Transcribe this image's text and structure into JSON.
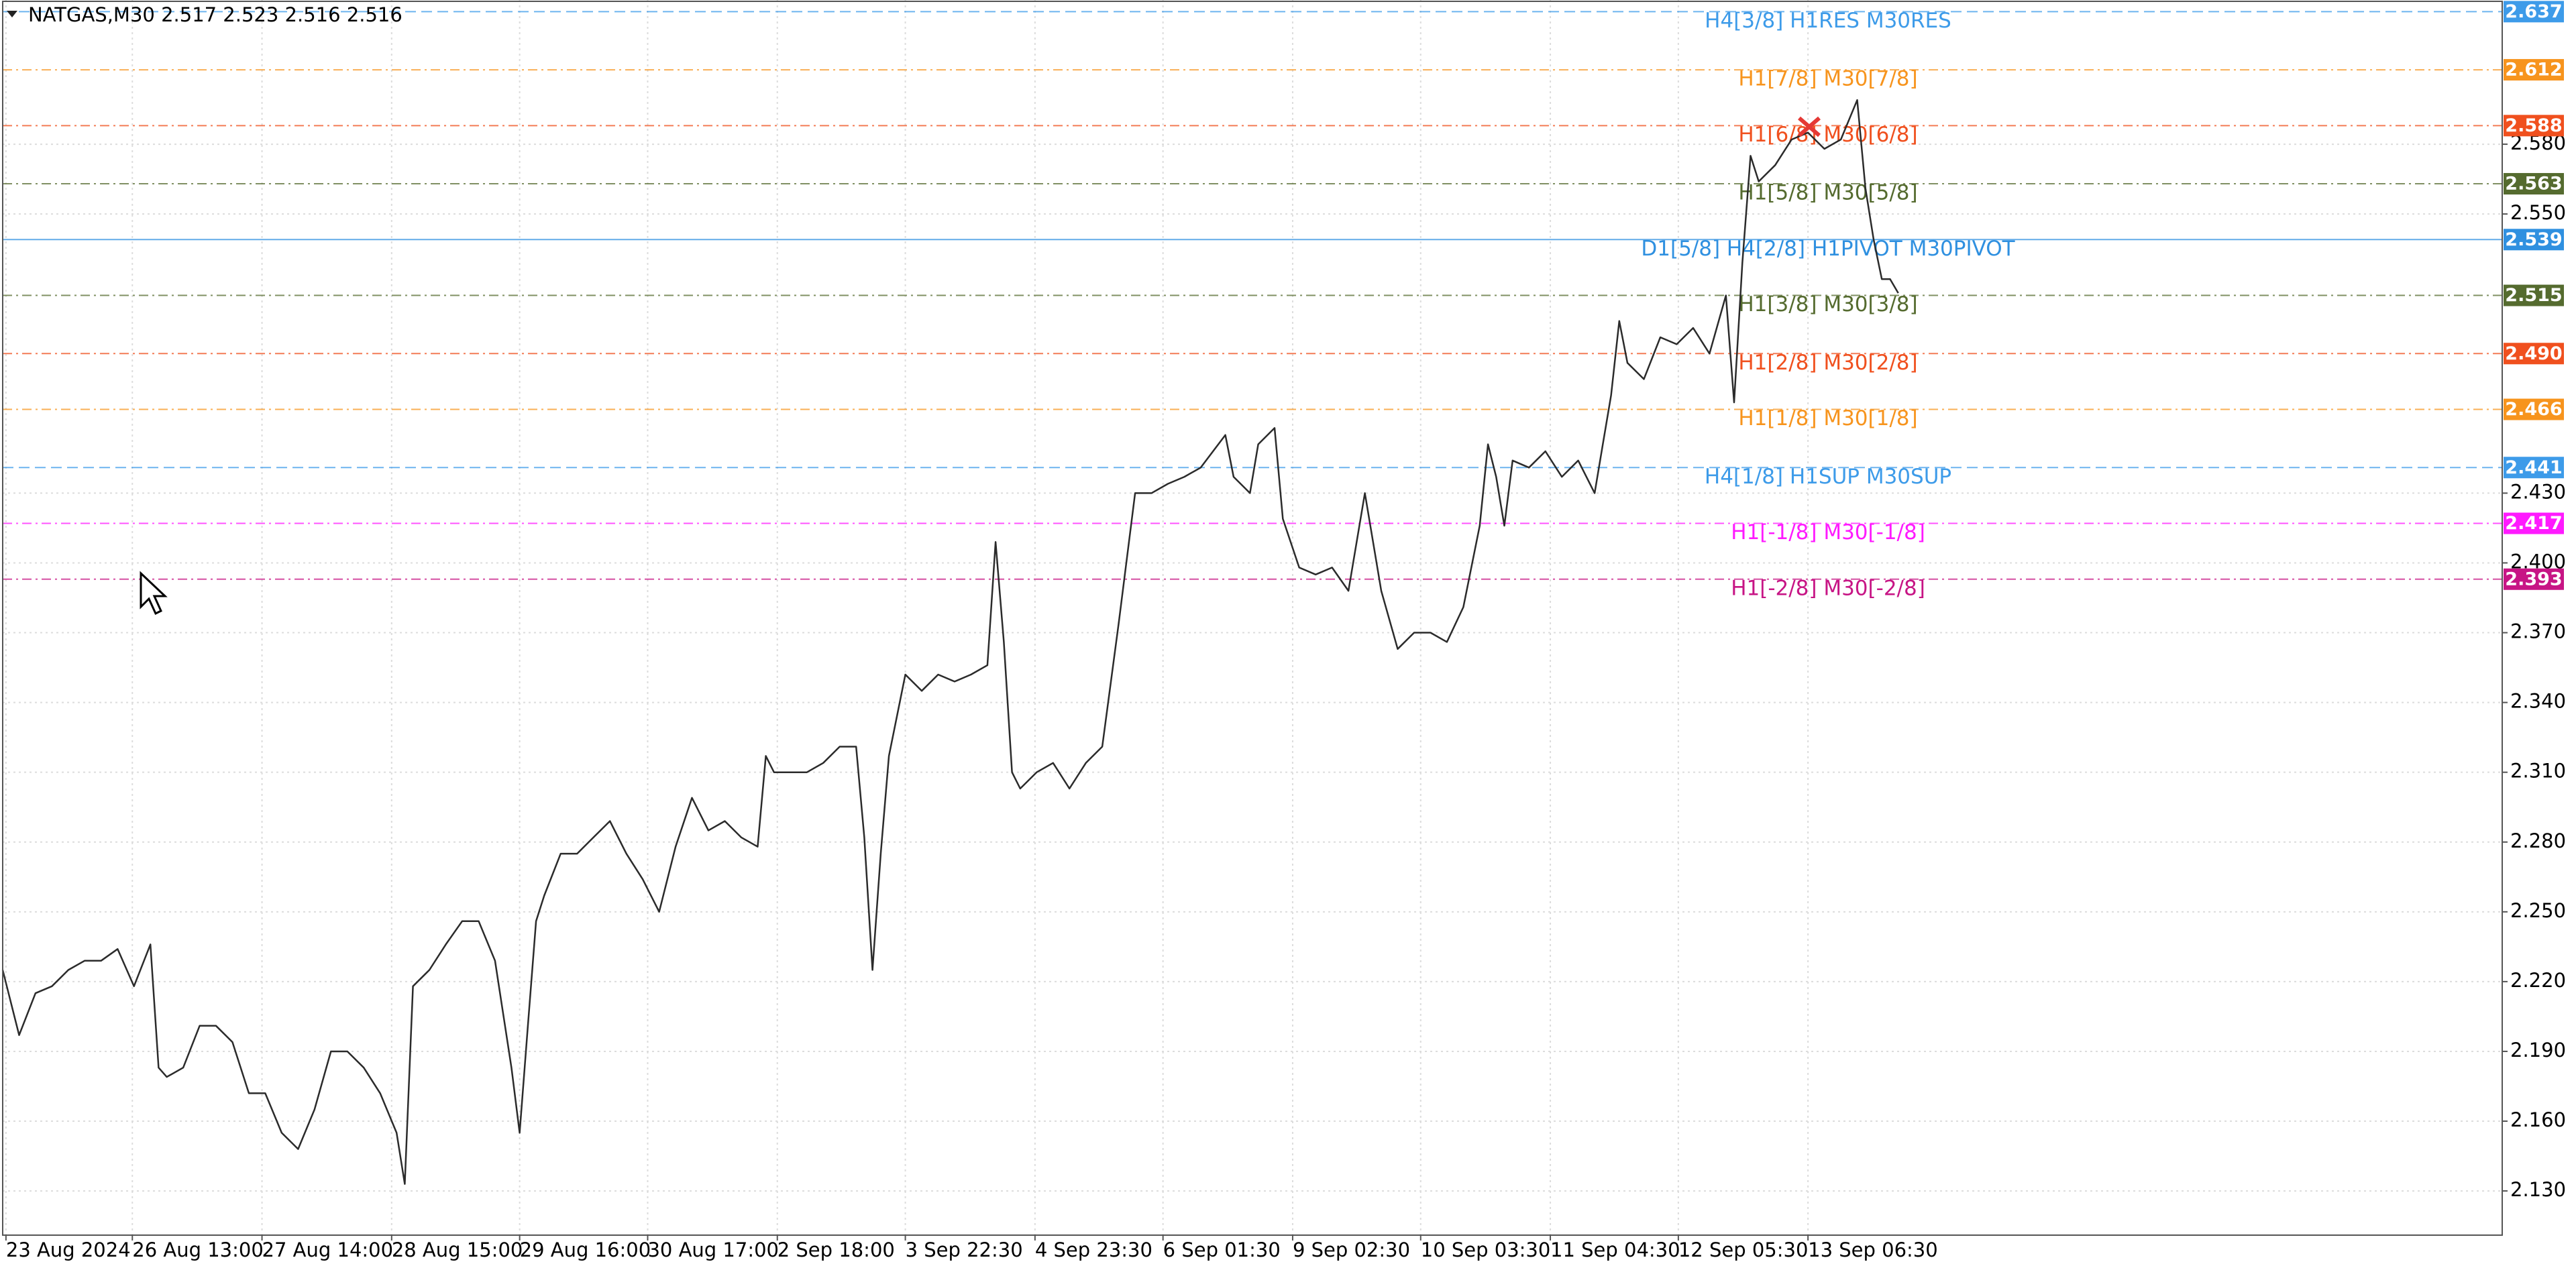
{
  "chart_data": {
    "type": "line",
    "title": "NATGAS,M30  2.517 2.523 2.516 2.516",
    "color": "#2b2b2b",
    "grid": true,
    "xlim": [
      0,
      1523
    ],
    "ylim": [
      2.111,
      2.642
    ],
    "xticks": [
      {
        "value": 2,
        "label": "23 Aug 2024"
      },
      {
        "value": 79,
        "label": "26 Aug 13:00"
      },
      {
        "value": 158,
        "label": "27 Aug 14:00"
      },
      {
        "value": 237,
        "label": "28 Aug 15:00"
      },
      {
        "value": 315,
        "label": "29 Aug 16:00"
      },
      {
        "value": 393,
        "label": "30 Aug 17:00"
      },
      {
        "value": 472,
        "label": "2 Sep 18:00"
      },
      {
        "value": 550,
        "label": "3 Sep 22:30"
      },
      {
        "value": 629,
        "label": "4 Sep 23:30"
      },
      {
        "value": 707,
        "label": "6 Sep 01:30"
      },
      {
        "value": 786,
        "label": "9 Sep 02:30"
      },
      {
        "value": 864,
        "label": "10 Sep 03:30"
      },
      {
        "value": 943,
        "label": "11 Sep 04:30"
      },
      {
        "value": 1021,
        "label": "12 Sep 05:30"
      },
      {
        "value": 1100,
        "label": "13 Sep 06:30"
      }
    ],
    "yticks": [
      {
        "value": 2.13,
        "label": "2.130"
      },
      {
        "value": 2.16,
        "label": "2.160"
      },
      {
        "value": 2.19,
        "label": "2.190"
      },
      {
        "value": 2.22,
        "label": "2.220"
      },
      {
        "value": 2.25,
        "label": "2.250"
      },
      {
        "value": 2.28,
        "label": "2.280"
      },
      {
        "value": 2.31,
        "label": "2.310"
      },
      {
        "value": 2.34,
        "label": "2.340"
      },
      {
        "value": 2.37,
        "label": "2.370"
      },
      {
        "value": 2.4,
        "label": "2.400"
      },
      {
        "value": 2.43,
        "label": "2.430"
      },
      {
        "value": 2.55,
        "label": "2.550"
      },
      {
        "value": 2.58,
        "label": "2.580"
      }
    ],
    "x": [
      0,
      10,
      20,
      30,
      40,
      50,
      60,
      70,
      80,
      90,
      95,
      100,
      110,
      120,
      130,
      140,
      150,
      160,
      170,
      180,
      190,
      200,
      210,
      220,
      230,
      240,
      245,
      250,
      260,
      270,
      280,
      290,
      300,
      310,
      315,
      320,
      325,
      330,
      340,
      350,
      360,
      370,
      380,
      390,
      400,
      410,
      420,
      430,
      440,
      450,
      460,
      465,
      470,
      480,
      490,
      500,
      510,
      520,
      525,
      530,
      535,
      540,
      550,
      560,
      570,
      580,
      590,
      600,
      605,
      610,
      615,
      620,
      630,
      640,
      650,
      660,
      670,
      680,
      690,
      700,
      710,
      720,
      730,
      745,
      750,
      760,
      765,
      775,
      780,
      790,
      800,
      810,
      820,
      830,
      840,
      850,
      860,
      870,
      880,
      890,
      900,
      905,
      910,
      915,
      920,
      930,
      940,
      950,
      960,
      970,
      975,
      980,
      985,
      990,
      1000,
      1010,
      1020,
      1030,
      1040,
      1050,
      1055,
      1060,
      1065,
      1070,
      1080,
      1090,
      1100,
      1110,
      1120,
      1130,
      1135,
      1140,
      1145,
      1150,
      1155
    ],
    "values": [
      2.225,
      2.197,
      2.215,
      2.218,
      2.225,
      2.229,
      2.229,
      2.234,
      2.218,
      2.236,
      2.183,
      2.179,
      2.183,
      2.201,
      2.201,
      2.194,
      2.172,
      2.172,
      2.155,
      2.148,
      2.165,
      2.19,
      2.19,
      2.183,
      2.172,
      2.155,
      2.133,
      2.218,
      2.225,
      2.236,
      2.246,
      2.246,
      2.229,
      2.183,
      2.155,
      2.201,
      2.246,
      2.257,
      2.275,
      2.275,
      2.282,
      2.289,
      2.275,
      2.264,
      2.25,
      2.278,
      2.299,
      2.285,
      2.289,
      2.282,
      2.278,
      2.317,
      2.31,
      2.31,
      2.31,
      2.314,
      2.321,
      2.321,
      2.282,
      2.225,
      2.275,
      2.317,
      2.352,
      2.345,
      2.352,
      2.349,
      2.352,
      2.356,
      2.409,
      2.366,
      2.31,
      2.303,
      2.31,
      2.314,
      2.303,
      2.314,
      2.321,
      2.374,
      2.43,
      2.43,
      2.434,
      2.437,
      2.441,
      2.455,
      2.437,
      2.43,
      2.451,
      2.458,
      2.419,
      2.398,
      2.395,
      2.398,
      2.388,
      2.43,
      2.388,
      2.363,
      2.37,
      2.37,
      2.366,
      2.381,
      2.416,
      2.451,
      2.437,
      2.416,
      2.444,
      2.441,
      2.448,
      2.437,
      2.444,
      2.43,
      2.451,
      2.472,
      2.504,
      2.486,
      2.479,
      2.497,
      2.494,
      2.501,
      2.49,
      2.515,
      2.469,
      2.529,
      2.575,
      2.564,
      2.571,
      2.582,
      2.585,
      2.578,
      2.582,
      2.599,
      2.561,
      2.539,
      2.522,
      2.522,
      2.516
    ],
    "levels": {
      "names": [
        "H4[3/8] H1RES M30RES",
        "H1[7/8] M30[7/8]",
        "H1[6/8] M30[6/8]",
        "H1[5/8] M30[5/8]",
        "D1[5/8] H4[2/8] H1PIVOT M30PIVOT",
        "H1[3/8] M30[3/8]",
        "H1[2/8] M30[2/8]",
        "H1[1/8] M30[1/8]",
        "H4[1/8] H1SUP M30SUP",
        "H1[-1/8] M30[-1/8]",
        "H1[-2/8] M30[-2/8]"
      ],
      "values": [
        2.637,
        2.612,
        2.588,
        2.563,
        2.539,
        2.515,
        2.49,
        2.466,
        2.441,
        2.417,
        2.393
      ],
      "value_labels": [
        "2.637",
        "2.612",
        "2.588",
        "2.563",
        "2.539",
        "2.515",
        "2.490",
        "2.466",
        "2.441",
        "2.417",
        "2.393"
      ],
      "colors": [
        "#3d9be9",
        "#f7941d",
        "#f0501e",
        "#556b2f",
        "#2f90e0",
        "#556b2f",
        "#f0501e",
        "#f7941d",
        "#3d9be9",
        "#ff1aff",
        "#c71585"
      ],
      "dashes": [
        "dashed",
        "dashdot",
        "dashdot",
        "dashdot",
        "solid",
        "dashdot",
        "dashdot",
        "dashdot",
        "dashed",
        "dashdot",
        "dashdot"
      ]
    }
  }
}
